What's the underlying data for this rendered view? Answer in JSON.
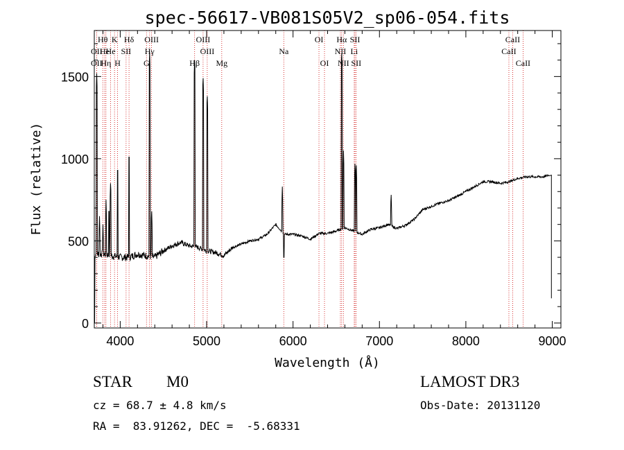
{
  "chart_data": {
    "type": "line",
    "title": "spec-56617-VB081S05V2_sp06-054.fits",
    "xlabel": "Wavelength (Å)",
    "ylabel": "Flux (relative)",
    "xlim": [
      3700,
      9100
    ],
    "ylim": [
      -30,
      1780
    ],
    "xticks": [
      4000,
      5000,
      6000,
      7000,
      8000,
      9000
    ],
    "yticks": [
      0,
      500,
      1000,
      1500
    ],
    "series": [
      {
        "name": "spectrum",
        "continuum": [
          [
            3700,
            420
          ],
          [
            3800,
            420
          ],
          [
            3900,
            410
          ],
          [
            4000,
            400
          ],
          [
            4100,
            400
          ],
          [
            4200,
            420
          ],
          [
            4300,
            410
          ],
          [
            4400,
            400
          ],
          [
            4500,
            440
          ],
          [
            4600,
            470
          ],
          [
            4700,
            490
          ],
          [
            4800,
            470
          ],
          [
            4900,
            460
          ],
          [
            5000,
            440
          ],
          [
            5100,
            430
          ],
          [
            5200,
            410
          ],
          [
            5300,
            460
          ],
          [
            5400,
            480
          ],
          [
            5500,
            500
          ],
          [
            5600,
            510
          ],
          [
            5700,
            540
          ],
          [
            5800,
            600
          ],
          [
            5900,
            540
          ],
          [
            6000,
            540
          ],
          [
            6100,
            530
          ],
          [
            6200,
            510
          ],
          [
            6300,
            545
          ],
          [
            6400,
            545
          ],
          [
            6500,
            560
          ],
          [
            6600,
            580
          ],
          [
            6700,
            560
          ],
          [
            6800,
            540
          ],
          [
            6900,
            570
          ],
          [
            7000,
            580
          ],
          [
            7100,
            600
          ],
          [
            7200,
            575
          ],
          [
            7300,
            595
          ],
          [
            7400,
            630
          ],
          [
            7500,
            690
          ],
          [
            7600,
            710
          ],
          [
            7700,
            730
          ],
          [
            7800,
            745
          ],
          [
            7900,
            770
          ],
          [
            8000,
            800
          ],
          [
            8100,
            830
          ],
          [
            8200,
            860
          ],
          [
            8300,
            860
          ],
          [
            8400,
            850
          ],
          [
            8500,
            860
          ],
          [
            8600,
            880
          ],
          [
            8700,
            890
          ],
          [
            8800,
            890
          ],
          [
            8900,
            890
          ],
          [
            8960,
            900
          ]
        ],
        "features": [
          {
            "wave": 3728,
            "flux": 1520
          },
          {
            "wave": 3760,
            "flux": 650
          },
          {
            "wave": 3800,
            "flux": 600
          },
          {
            "wave": 3836,
            "flux": 750
          },
          {
            "wave": 3870,
            "flux": 720
          },
          {
            "wave": 3889,
            "flux": 870
          },
          {
            "wave": 3970,
            "flux": 970
          },
          {
            "wave": 4102,
            "flux": 1050
          },
          {
            "wave": 4340,
            "flux": 1650
          },
          {
            "wave": 4363,
            "flux": 700
          },
          {
            "wave": 4861,
            "flux": 1620
          },
          {
            "wave": 4959,
            "flux": 1510
          },
          {
            "wave": 5007,
            "flux": 1400
          },
          {
            "wave": 5876,
            "flux": 830
          },
          {
            "wave": 6563,
            "flux": 1660
          },
          {
            "wave": 6584,
            "flux": 1050
          },
          {
            "wave": 6717,
            "flux": 990
          },
          {
            "wave": 6731,
            "flux": 980
          },
          {
            "wave": 7135,
            "flux": 800
          }
        ],
        "dips": [
          {
            "wave": 3700,
            "flux": 0
          },
          {
            "wave": 5895,
            "flux": 400
          },
          {
            "wave": 8990,
            "flux": 150
          }
        ]
      }
    ],
    "spectral_lines": [
      {
        "label": "Hθ",
        "wave": 3798,
        "row": 1
      },
      {
        "label": "OII",
        "wave": 3727,
        "row": 2
      },
      {
        "label": "OII",
        "wave": 3727,
        "row": 3
      },
      {
        "label": "He",
        "wave": 3820,
        "row": 2
      },
      {
        "label": "Hη",
        "wave": 3835,
        "row": 3
      },
      {
        "label": "K",
        "wave": 3934,
        "row": 1
      },
      {
        "label": "He",
        "wave": 3889,
        "row": 2
      },
      {
        "label": "SII",
        "wave": 4068,
        "row": 2
      },
      {
        "label": "H",
        "wave": 3969,
        "row": 3
      },
      {
        "label": "Hδ",
        "wave": 4102,
        "row": 1
      },
      {
        "label": "OIII",
        "wave": 4363,
        "row": 1
      },
      {
        "label": "Hγ",
        "wave": 4340,
        "row": 2
      },
      {
        "label": "G",
        "wave": 4304,
        "row": 3
      },
      {
        "label": "OIII",
        "wave": 4959,
        "row": 1
      },
      {
        "label": "OIII",
        "wave": 5007,
        "row": 2
      },
      {
        "label": "Hβ",
        "wave": 4861,
        "row": 3
      },
      {
        "label": "Mg",
        "wave": 5175,
        "row": 3
      },
      {
        "label": "Na",
        "wave": 5893,
        "row": 2
      },
      {
        "label": "OI",
        "wave": 6300,
        "row": 1
      },
      {
        "label": "OI",
        "wave": 6364,
        "row": 3
      },
      {
        "label": "Hα",
        "wave": 6563,
        "row": 1
      },
      {
        "label": "NII",
        "wave": 6548,
        "row": 2
      },
      {
        "label": "NII",
        "wave": 6583,
        "row": 3
      },
      {
        "label": "SII",
        "wave": 6717,
        "row": 1
      },
      {
        "label": "Li",
        "wave": 6708,
        "row": 2
      },
      {
        "label": "SII",
        "wave": 6731,
        "row": 3
      },
      {
        "label": "CaII",
        "wave": 8542,
        "row": 1
      },
      {
        "label": "CaII",
        "wave": 8498,
        "row": 2
      },
      {
        "label": "CaII",
        "wave": 8662,
        "row": 3
      }
    ]
  },
  "info": {
    "class": "STAR",
    "subclass": "M0",
    "survey": "LAMOST DR3",
    "redshift": "cz = 68.7 ± 4.8 km/s",
    "obs_date": "Obs-Date: 20131120",
    "coords": "RA =  83.91262, DEC =  -5.68331"
  }
}
